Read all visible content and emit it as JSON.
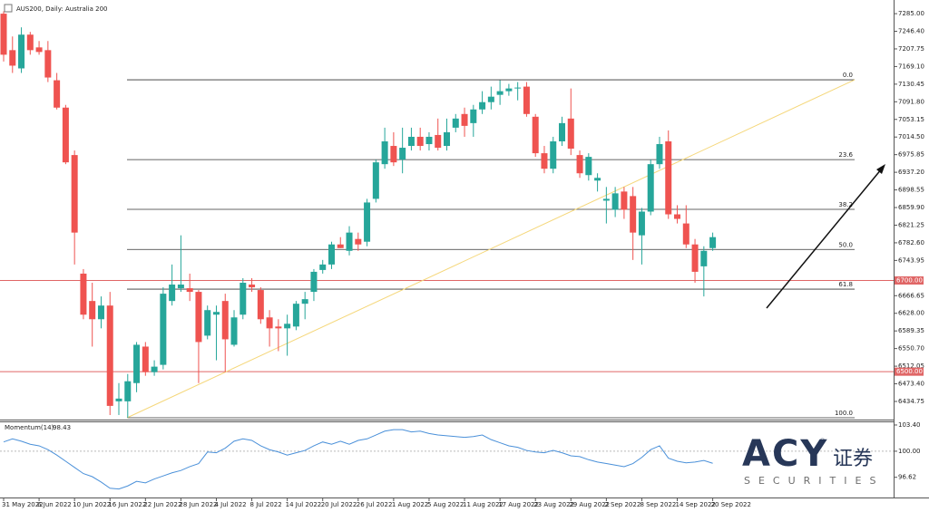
{
  "chart_data": [
    {
      "type": "candlestick",
      "title": "AUS200, Daily: Australia 200",
      "categories": [
        "31 May 2022",
        null,
        null,
        null,
        "6 Jun 2022",
        null,
        null,
        null,
        "10 Jun 2022",
        null,
        null,
        null,
        "16 Jun 2022",
        null,
        null,
        null,
        "22 Jun 2022",
        null,
        null,
        null,
        "28 Jun 2022",
        null,
        null,
        null,
        "4 Jul 2022",
        null,
        null,
        null,
        "8 Jul 2022",
        null,
        null,
        null,
        "14 Jul 2022",
        null,
        null,
        null,
        "20 Jul 2022",
        null,
        null,
        null,
        "26 Jul 2022",
        null,
        null,
        null,
        "1 Aug 2022",
        null,
        null,
        null,
        "5 Aug 2022",
        null,
        null,
        null,
        "11 Aug 2022",
        null,
        null,
        null,
        "17 Aug 2022",
        null,
        null,
        null,
        "23 Aug 2022",
        null,
        null,
        null,
        "29 Aug 2022",
        null,
        null,
        null,
        "2 Sep 2022",
        null,
        null,
        null,
        "8 Sep 2022",
        null,
        null,
        null,
        "14 Sep 2022",
        null,
        null,
        null,
        "20 Sep 2022"
      ],
      "open": [
        7285,
        7205,
        7165,
        7239,
        7211,
        7205,
        7139,
        7079,
        6975,
        6715,
        6655,
        6615,
        6645,
        6435,
        6435,
        6475,
        6555,
        6499,
        6515,
        6655,
        6683,
        6683,
        6675,
        6579,
        6625,
        6655,
        6559,
        6625,
        6691,
        6679,
        6619,
        6599,
        6595,
        6599,
        6649,
        6675,
        6723,
        6735,
        6779,
        6765,
        6791,
        6785,
        6879,
        6955,
        6995,
        6965,
        6995,
        7015,
        6999,
        7019,
        6995,
        7035,
        7065,
        7045,
        7075,
        7091,
        7107,
        7115,
        7121,
        7125,
        7059,
        6979,
        6945,
        7005,
        7055,
        6975,
        6931,
        6919,
        6875,
        6855,
        6895,
        6885,
        6799,
        6851,
        6955,
        7005,
        6845,
        6825,
        6779,
        6731,
        6771
      ],
      "high": [
        7290,
        7235,
        7255,
        7245,
        7225,
        7225,
        7155,
        7085,
        6985,
        6725,
        6695,
        6665,
        6675,
        6475,
        6495,
        6565,
        6565,
        6525,
        6685,
        6735,
        6799,
        6715,
        6679,
        6645,
        6645,
        6671,
        6635,
        6705,
        6705,
        6685,
        6635,
        6615,
        6625,
        6655,
        6675,
        6725,
        6745,
        6785,
        6795,
        6819,
        6805,
        6879,
        6965,
        7035,
        7025,
        7035,
        7035,
        7035,
        7025,
        7055,
        7055,
        7065,
        7079,
        7085,
        7115,
        7125,
        7139,
        7131,
        7135,
        7135,
        7065,
        6995,
        7015,
        7059,
        7121,
        6985,
        6979,
        6935,
        6905,
        6905,
        6905,
        6905,
        6859,
        6965,
        7015,
        7029,
        6865,
        6865,
        6791,
        6775,
        6805
      ],
      "low": [
        7180,
        7155,
        7155,
        7195,
        7195,
        7135,
        7075,
        6955,
        6735,
        6615,
        6555,
        6595,
        6405,
        6405,
        6399,
        6455,
        6491,
        6491,
        6505,
        6645,
        6675,
        6655,
        6475,
        6571,
        6525,
        6499,
        6555,
        6615,
        6675,
        6605,
        6555,
        6545,
        6535,
        6591,
        6615,
        6655,
        6715,
        6725,
        6771,
        6755,
        6765,
        6775,
        6871,
        6945,
        6951,
        6935,
        6985,
        6985,
        6985,
        6985,
        6985,
        7025,
        7015,
        7015,
        7065,
        7075,
        7085,
        7105,
        7095,
        7059,
        6971,
        6935,
        6935,
        6995,
        6975,
        6925,
        6919,
        6895,
        6825,
        6839,
        6835,
        6745,
        6735,
        6843,
        6945,
        6835,
        6825,
        6771,
        6695,
        6665,
        6765
      ],
      "close": [
        7195,
        7171,
        7239,
        7205,
        7201,
        7145,
        7079,
        6959,
        6805,
        6625,
        6615,
        6645,
        6425,
        6441,
        6479,
        6559,
        6499,
        6511,
        6671,
        6691,
        6691,
        6675,
        6565,
        6635,
        6631,
        6571,
        6619,
        6695,
        6685,
        6615,
        6595,
        6595,
        6605,
        6649,
        6659,
        6719,
        6735,
        6779,
        6771,
        6805,
        6779,
        6871,
        6959,
        7005,
        6959,
        6991,
        7015,
        6995,
        7015,
        6991,
        7025,
        7055,
        7039,
        7075,
        7091,
        7103,
        7115,
        7121,
        7123,
        7065,
        6979,
        6945,
        7005,
        7045,
        6989,
        6935,
        6971,
        6925,
        6879,
        6891,
        6855,
        6805,
        6851,
        6955,
        6999,
        6845,
        6835,
        6779,
        6719,
        6765,
        6795
      ],
      "up_color": "#26a69a",
      "down_color": "#ef5350",
      "ylim": [
        6395,
        7309
      ],
      "yticks": [
        {
          "value": 7285,
          "label": "7285.00"
        },
        {
          "value": 7246.4,
          "label": "7246.40"
        },
        {
          "value": 7207.75,
          "label": "7207.75"
        },
        {
          "value": 7169.1,
          "label": "7169.10"
        },
        {
          "value": 7130.45,
          "label": "7130.45"
        },
        {
          "value": 7091.8,
          "label": "7091.80"
        },
        {
          "value": 7053.15,
          "label": "7053.15"
        },
        {
          "value": 7014.5,
          "label": "7014.50"
        },
        {
          "value": 6975.85,
          "label": "6975.85"
        },
        {
          "value": 6937.2,
          "label": "6937.20"
        },
        {
          "value": 6898.55,
          "label": "6898.55"
        },
        {
          "value": 6859.9,
          "label": "6859.90"
        },
        {
          "value": 6821.25,
          "label": "6821.25"
        },
        {
          "value": 6782.6,
          "label": "6782.60"
        },
        {
          "value": 6743.95,
          "label": "6743.95"
        },
        {
          "value": 6666.65,
          "label": "6666.65"
        },
        {
          "value": 6628,
          "label": "6628.00"
        },
        {
          "value": 6589.35,
          "label": "6589.35"
        },
        {
          "value": 6550.7,
          "label": "6550.70"
        },
        {
          "value": 6512.05,
          "label": "6512.05"
        },
        {
          "value": 6473.4,
          "label": "6473.40"
        },
        {
          "value": 6434.75,
          "label": "6434.75"
        }
      ],
      "levels": [
        {
          "value": 6700,
          "label": "6700.00"
        },
        {
          "value": 6500,
          "label": "6500.00"
        }
      ],
      "level_color": "#e06666",
      "fib_levels": [
        {
          "label": "0.0",
          "price": 7140
        },
        {
          "label": "23.6",
          "price": 6965
        },
        {
          "label": "38.2",
          "price": 6856
        },
        {
          "label": "50.0",
          "price": 6768
        },
        {
          "label": "61.8",
          "price": 6681
        },
        {
          "label": "100.0",
          "price": 6399
        }
      ],
      "trendline": [
        6399,
        7140
      ],
      "trendline_color": "#f5d77a"
    },
    {
      "type": "line",
      "title": "Momentum(14)",
      "color": "#4a90d9",
      "values": [
        101.2,
        101.6,
        101.3,
        100.9,
        100.7,
        100.2,
        99.5,
        98.7,
        97.9,
        97.1,
        96.7,
        96.0,
        95.2,
        95.1,
        95.5,
        96.1,
        95.9,
        96.4,
        96.8,
        97.2,
        97.5,
        98.0,
        98.4,
        99.9,
        99.8,
        100.4,
        101.3,
        101.6,
        101.4,
        100.7,
        100.2,
        99.9,
        99.5,
        99.8,
        100.1,
        100.7,
        101.2,
        100.9,
        101.3,
        100.9,
        101.4,
        101.6,
        102.1,
        102.6,
        102.8,
        102.8,
        102.5,
        102.6,
        102.3,
        102.1,
        102.0,
        101.9,
        101.8,
        101.9,
        102.1,
        101.5,
        101.1,
        100.7,
        100.5,
        100.1,
        99.9,
        99.8,
        100.1,
        99.8,
        99.4,
        99.3,
        98.9,
        98.6,
        98.4,
        98.2,
        98.0,
        98.4,
        99.2,
        100.2,
        100.7,
        99.1,
        98.7,
        98.5,
        98.6,
        98.8,
        98.43
      ],
      "ylim": [
        94.0,
        103.75
      ],
      "yticks": [
        {
          "value": 103.4,
          "label": "103.40"
        },
        {
          "value": 100,
          "label": "100.00"
        },
        {
          "value": 96.62,
          "label": "96.62"
        }
      ],
      "reference": 100
    }
  ],
  "watermark": {
    "brand": "ACY",
    "chinese": "证券",
    "mark": "®",
    "sub": "SECURITIES"
  }
}
